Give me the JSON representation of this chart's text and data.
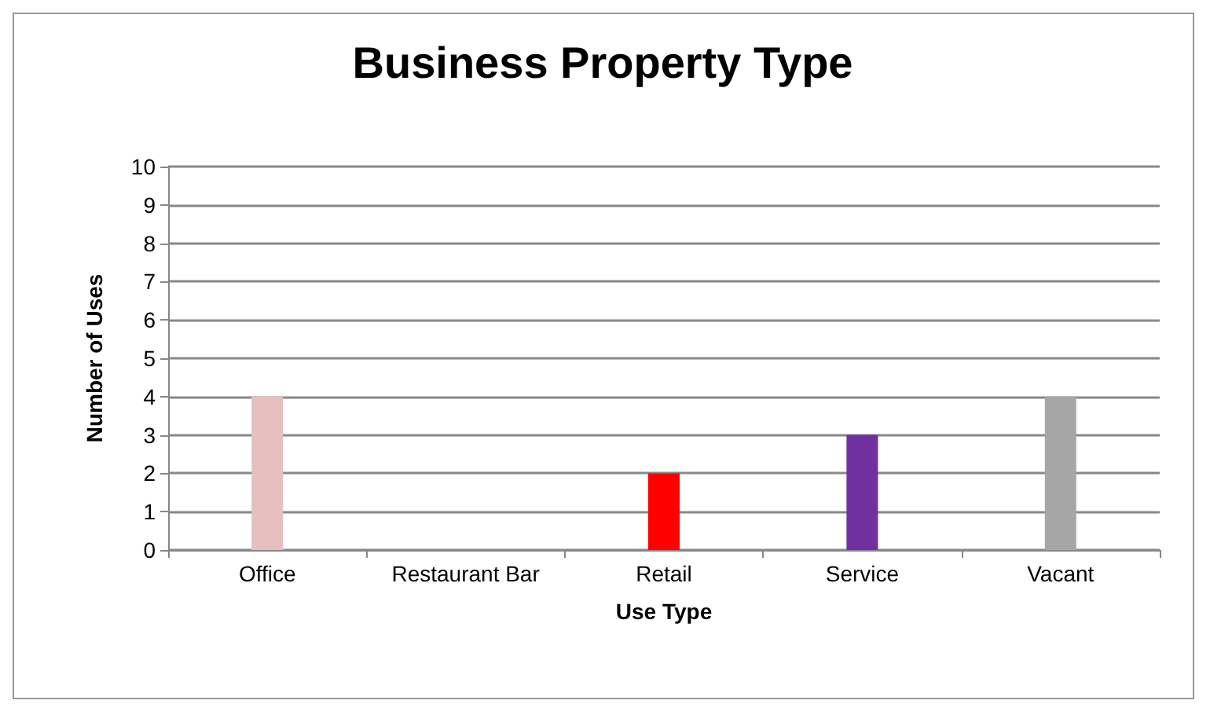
{
  "chart_data": {
    "type": "bar",
    "title": "Business Property Type",
    "xlabel": "Use Type",
    "ylabel": "Number of Uses",
    "categories": [
      "Office",
      "Restaurant Bar",
      "Retail",
      "Service",
      "Vacant"
    ],
    "values": [
      4,
      0,
      2,
      3,
      4
    ],
    "colors": [
      "#e6bfbf",
      "#4f81bd",
      "#ff0000",
      "#7030a0",
      "#a6a6a6"
    ],
    "ylim": [
      0,
      10
    ],
    "yticks": [
      0,
      1,
      2,
      3,
      4,
      5,
      6,
      7,
      8,
      9,
      10
    ],
    "grid": "y"
  }
}
